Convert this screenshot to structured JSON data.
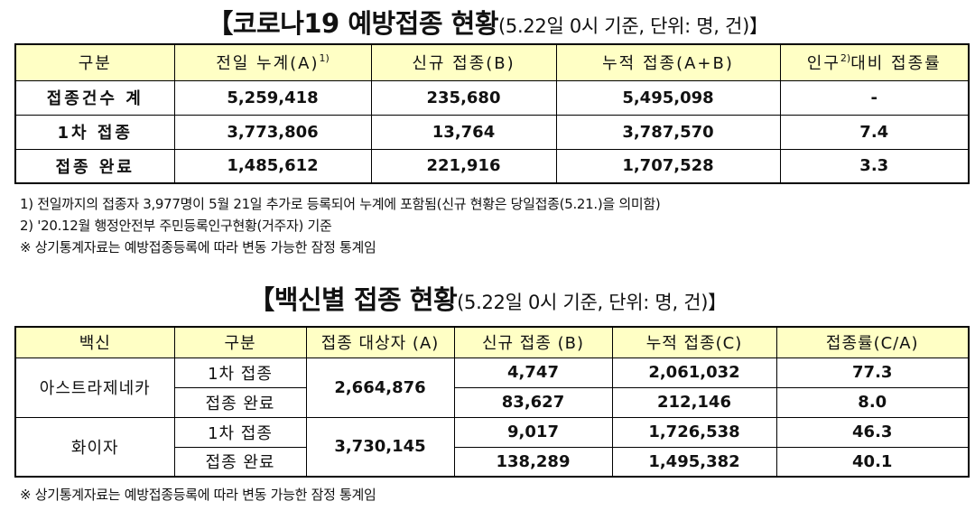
{
  "section1": {
    "title_main": "【코로나19 예방접종 현황",
    "title_sub": "(5.22일 0시 기준, 단위: 명, 건)】",
    "headers": [
      "구분",
      "전일 누계(A)",
      "신규 접종(B)",
      "누적 접종(A+B)",
      "인구",
      "대비 접종률"
    ],
    "header_sup_1": "1)",
    "header_sup_2": "2)",
    "rows": [
      {
        "label": "접종건수 계",
        "prev": "5,259,418",
        "new": "235,680",
        "total": "5,495,098",
        "rate": "-"
      },
      {
        "label": "1차 접종",
        "prev": "3,773,806",
        "new": "13,764",
        "total": "3,787,570",
        "rate": "7.4"
      },
      {
        "label": "접종 완료",
        "prev": "1,485,612",
        "new": "221,916",
        "total": "1,707,528",
        "rate": "3.3"
      }
    ],
    "notes": [
      "1) 전일까지의 접종자 3,977명이 5월 21일 추가로 등록되어 누계에 포함됨(신규 현황은 당일접종(5.21.)을 의미함)",
      "2) '20.12월 행정안전부 주민등록인구현황(거주자) 기준",
      "※ 상기통계자료는 예방접종등록에 따라 변동 가능한 잠정 통계임"
    ]
  },
  "section2": {
    "title_main": "【백신별 접종 현황",
    "title_sub": "(5.22일 0시 기준, 단위: 명, 건)】",
    "headers": [
      "백신",
      "구분",
      "접종 대상자 (A)",
      "신규 접종 (B)",
      "누적 접종(C)",
      "접종률(C/A)"
    ],
    "vaccines": [
      {
        "name": "아스트라제네카",
        "target": "2,664,876",
        "rows": [
          {
            "sub": "1차 접종",
            "new": "4,747",
            "total": "2,061,032",
            "rate": "77.3"
          },
          {
            "sub": "접종 완료",
            "new": "83,627",
            "total": "212,146",
            "rate": "8.0"
          }
        ]
      },
      {
        "name": "화이자",
        "target": "3,730,145",
        "rows": [
          {
            "sub": "1차 접종",
            "new": "9,017",
            "total": "1,726,538",
            "rate": "46.3"
          },
          {
            "sub": "접종 완료",
            "new": "138,289",
            "total": "1,495,382",
            "rate": "40.1"
          }
        ]
      }
    ],
    "note": "※ 상기통계자료는 예방접종등록에 따라 변동 가능한 잠정 통계임"
  }
}
